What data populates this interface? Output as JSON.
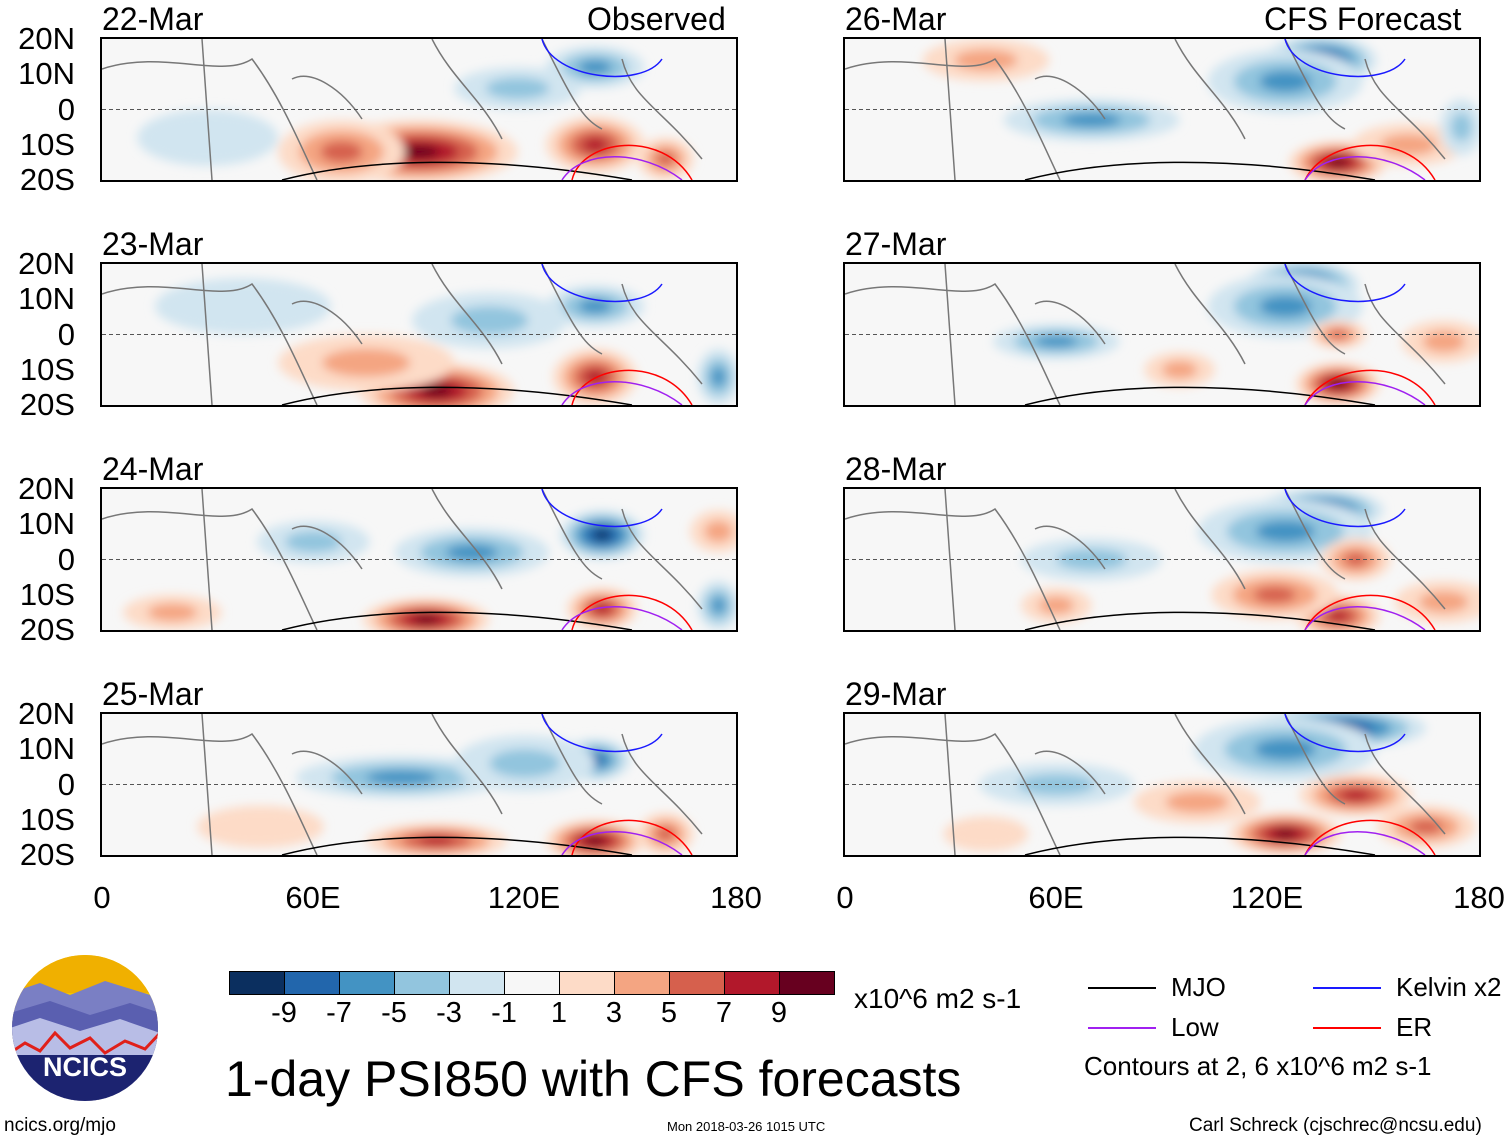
{
  "title": "1-day PSI850 with CFS forecasts",
  "labels": {
    "observed": "Observed",
    "forecast": "CFS Forecast"
  },
  "y_ticks": [
    "20N",
    "10N",
    "0",
    "10S",
    "20S"
  ],
  "x_ticks": [
    "0",
    "60E",
    "120E",
    "180"
  ],
  "colorbar": {
    "colors": [
      "#0b2f5f",
      "#2266ac",
      "#4393c3",
      "#92c5de",
      "#d1e5f0",
      "#f7f7f7",
      "#fddbc7",
      "#f4a582",
      "#d6604d",
      "#b2182b",
      "#67001f"
    ],
    "ticks": [
      "-9",
      "-7",
      "-5",
      "-3",
      "-1",
      "1",
      "3",
      "5",
      "7",
      "9"
    ],
    "units": "x10^6 m2 s-1"
  },
  "legend": {
    "items": [
      {
        "label": "MJO",
        "color": "#000000"
      },
      {
        "label": "Kelvin x2",
        "color": "#1a1aff"
      },
      {
        "label": "Low",
        "color": "#a020f0"
      },
      {
        "label": "ER",
        "color": "#ff0000"
      }
    ],
    "note": "Contours at 2, 6 x10^6 m2 s-1"
  },
  "footer": {
    "left": "ncics.org/mjo",
    "center": "Mon 2018-03-26 1015 UTC",
    "right": "Carl Schreck (cjschrec@ncsu.edu)",
    "logo_text": "NCICS"
  },
  "panels": [
    {
      "date": "22-Mar",
      "blobs": [
        [
          90,
          -12,
          28,
          9,
          9
        ],
        [
          140,
          -10,
          14,
          8,
          7
        ],
        [
          68,
          -12,
          18,
          9,
          5
        ],
        [
          140,
          12,
          14,
          6,
          -5
        ],
        [
          118,
          6,
          18,
          6,
          -3
        ],
        [
          30,
          -8,
          20,
          8,
          -1
        ],
        [
          160,
          -14,
          8,
          6,
          5
        ]
      ]
    },
    {
      "date": "23-Mar",
      "blobs": [
        [
          95,
          -16,
          22,
          8,
          9
        ],
        [
          140,
          -12,
          12,
          8,
          7
        ],
        [
          75,
          -8,
          25,
          8,
          3
        ],
        [
          140,
          8,
          14,
          6,
          -5
        ],
        [
          110,
          4,
          22,
          8,
          -3
        ],
        [
          175,
          -12,
          6,
          8,
          -5
        ],
        [
          40,
          8,
          25,
          8,
          -1
        ]
      ]
    },
    {
      "date": "24-Mar",
      "blobs": [
        [
          92,
          -17,
          18,
          6,
          9
        ],
        [
          142,
          -14,
          10,
          6,
          7
        ],
        [
          142,
          7,
          12,
          7,
          -9
        ],
        [
          105,
          2,
          22,
          7,
          -5
        ],
        [
          60,
          5,
          16,
          6,
          -3
        ],
        [
          175,
          -13,
          6,
          7,
          -5
        ],
        [
          20,
          -15,
          14,
          5,
          3
        ],
        [
          175,
          8,
          8,
          6,
          3
        ]
      ]
    },
    {
      "date": "25-Mar",
      "blobs": [
        [
          140,
          -16,
          14,
          6,
          9
        ],
        [
          95,
          -16,
          20,
          5,
          7
        ],
        [
          140,
          7,
          10,
          6,
          -7
        ],
        [
          85,
          2,
          30,
          6,
          -5
        ],
        [
          120,
          6,
          20,
          8,
          -3
        ],
        [
          45,
          -12,
          18,
          6,
          1
        ],
        [
          160,
          -14,
          8,
          6,
          5
        ]
      ]
    },
    {
      "date": "26-Mar",
      "blobs": [
        [
          135,
          14,
          16,
          7,
          -9
        ],
        [
          125,
          8,
          22,
          9,
          -5
        ],
        [
          70,
          -3,
          25,
          6,
          -5
        ],
        [
          140,
          -15,
          14,
          6,
          9
        ],
        [
          160,
          -10,
          16,
          6,
          3
        ],
        [
          40,
          14,
          18,
          6,
          3
        ],
        [
          175,
          -5,
          6,
          8,
          -3
        ]
      ]
    },
    {
      "date": "27-Mar",
      "blobs": [
        [
          130,
          14,
          16,
          7,
          -9
        ],
        [
          125,
          8,
          22,
          9,
          -5
        ],
        [
          60,
          -2,
          18,
          5,
          -5
        ],
        [
          140,
          -14,
          12,
          6,
          9
        ],
        [
          140,
          0,
          8,
          4,
          5
        ],
        [
          170,
          -2,
          12,
          6,
          3
        ],
        [
          95,
          -10,
          10,
          5,
          3
        ]
      ]
    },
    {
      "date": "28-Mar",
      "blobs": [
        [
          135,
          14,
          18,
          6,
          -9
        ],
        [
          125,
          8,
          25,
          9,
          -5
        ],
        [
          140,
          -16,
          12,
          6,
          7
        ],
        [
          145,
          0,
          10,
          6,
          5
        ],
        [
          122,
          -10,
          18,
          7,
          5
        ],
        [
          70,
          0,
          20,
          6,
          -3
        ],
        [
          170,
          -12,
          14,
          6,
          3
        ],
        [
          60,
          -13,
          10,
          5,
          3
        ]
      ]
    },
    {
      "date": "29-Mar",
      "blobs": [
        [
          140,
          16,
          25,
          6,
          -9
        ],
        [
          125,
          10,
          26,
          9,
          -5
        ],
        [
          125,
          -14,
          16,
          6,
          9
        ],
        [
          145,
          -3,
          16,
          6,
          7
        ],
        [
          165,
          -12,
          14,
          6,
          5
        ],
        [
          60,
          0,
          22,
          6,
          -3
        ],
        [
          100,
          -5,
          18,
          6,
          3
        ],
        [
          40,
          -14,
          12,
          5,
          1
        ]
      ]
    }
  ]
}
